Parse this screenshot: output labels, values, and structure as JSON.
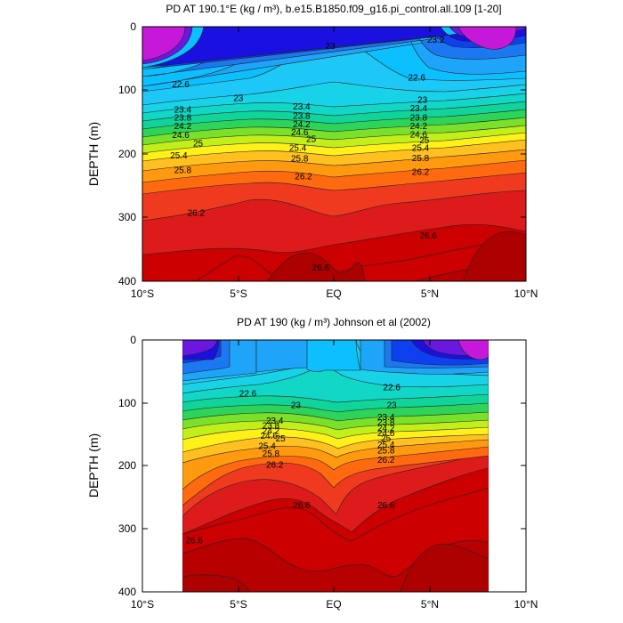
{
  "chart_data": [
    {
      "type": "contour",
      "title": "PD AT 190.1°E (kg / m³), b.e15.B1850.f09_g16.pi_control.all.109 [1-20]",
      "ylabel": "DEPTH (m)",
      "xlim": [
        -10,
        10
      ],
      "ylim": [
        400,
        0
      ],
      "x_tick_labels": [
        "10°S",
        "5°S",
        "EQ",
        "5°N",
        "10°N"
      ],
      "y_tick_labels": [
        "0",
        "100",
        "200",
        "300",
        "400"
      ],
      "grid": false,
      "legend": "none",
      "contour_levels": [
        21.8,
        22.2,
        22.6,
        23.0,
        23.2,
        23.4,
        23.6,
        23.8,
        24.0,
        24.2,
        24.4,
        24.6,
        24.8,
        25.0,
        25.2,
        25.4,
        25.6,
        25.8,
        26.2,
        26.6
      ],
      "contour_labels": [
        {
          "text": "23.2",
          "x": 5.3,
          "y": 20
        },
        {
          "text": "22.6",
          "x": -8.0,
          "y": 90
        },
        {
          "text": "23",
          "x": -0.2,
          "y": 30
        },
        {
          "text": "22.6",
          "x": 4.3,
          "y": 80
        },
        {
          "text": "23",
          "x": -5.0,
          "y": 112
        },
        {
          "text": "23",
          "x": 4.6,
          "y": 115
        },
        {
          "text": "23.4",
          "x": -7.9,
          "y": 130
        },
        {
          "text": "23.4",
          "x": -1.7,
          "y": 125
        },
        {
          "text": "23.4",
          "x": 4.4,
          "y": 128
        },
        {
          "text": "23.8",
          "x": -7.9,
          "y": 143
        },
        {
          "text": "23.8",
          "x": -1.7,
          "y": 140
        },
        {
          "text": "23.8",
          "x": 4.4,
          "y": 143
        },
        {
          "text": "24.2",
          "x": -7.9,
          "y": 156
        },
        {
          "text": "24.2",
          "x": -1.7,
          "y": 153
        },
        {
          "text": "24.2",
          "x": 4.4,
          "y": 156
        },
        {
          "text": "24.6",
          "x": -8.0,
          "y": 170
        },
        {
          "text": "24.6",
          "x": -1.8,
          "y": 166
        },
        {
          "text": "24.6",
          "x": 4.4,
          "y": 169
        },
        {
          "text": "25",
          "x": -7.1,
          "y": 183
        },
        {
          "text": "25",
          "x": -1.2,
          "y": 176
        },
        {
          "text": "25",
          "x": 4.7,
          "y": 178
        },
        {
          "text": "25.4",
          "x": -8.1,
          "y": 202
        },
        {
          "text": "25.4",
          "x": -1.9,
          "y": 190
        },
        {
          "text": "25.4",
          "x": 4.5,
          "y": 190
        },
        {
          "text": "25.8",
          "x": -7.9,
          "y": 225
        },
        {
          "text": "25.8",
          "x": -1.8,
          "y": 207
        },
        {
          "text": "25.8",
          "x": 4.5,
          "y": 206
        },
        {
          "text": "26.2",
          "x": -1.6,
          "y": 235
        },
        {
          "text": "26.2",
          "x": 4.5,
          "y": 228
        },
        {
          "text": "26.2",
          "x": -7.2,
          "y": 292
        },
        {
          "text": "26.6",
          "x": 4.9,
          "y": 328
        },
        {
          "text": "26.6",
          "x": -0.7,
          "y": 378
        }
      ]
    },
    {
      "type": "contour",
      "title": "PD AT 190 (kg / m³) Johnson et al (2002)",
      "ylabel": "DEPTH (m)",
      "xlim": [
        -10,
        10
      ],
      "ylim": [
        400,
        0
      ],
      "data_x_range": [
        -8,
        8
      ],
      "x_tick_labels": [
        "10°S",
        "5°S",
        "EQ",
        "5°N",
        "10°N"
      ],
      "y_tick_labels": [
        "0",
        "100",
        "200",
        "300",
        "400"
      ],
      "grid": false,
      "legend": "none",
      "contour_levels": [
        21.8,
        22.2,
        22.6,
        23.0,
        23.2,
        23.4,
        23.6,
        23.8,
        24.0,
        24.2,
        24.4,
        24.6,
        24.8,
        25.0,
        25.2,
        25.4,
        25.6,
        25.8,
        26.2,
        26.6
      ],
      "contour_labels": [
        {
          "text": "22.6",
          "x": -4.5,
          "y": 85
        },
        {
          "text": "22.6",
          "x": 3.0,
          "y": 75
        },
        {
          "text": "23",
          "x": -2.0,
          "y": 103
        },
        {
          "text": "23",
          "x": 3.0,
          "y": 103
        },
        {
          "text": "23.4",
          "x": -3.1,
          "y": 128
        },
        {
          "text": "23.4",
          "x": 2.7,
          "y": 122
        },
        {
          "text": "23.8",
          "x": -3.3,
          "y": 136
        },
        {
          "text": "23.8",
          "x": 2.7,
          "y": 131
        },
        {
          "text": "24.2",
          "x": -3.3,
          "y": 144
        },
        {
          "text": "24.2",
          "x": 2.7,
          "y": 140
        },
        {
          "text": "24.6",
          "x": -3.4,
          "y": 152
        },
        {
          "text": "24.6",
          "x": 2.7,
          "y": 148
        },
        {
          "text": "25",
          "x": -2.8,
          "y": 156
        },
        {
          "text": "25",
          "x": 2.7,
          "y": 156
        },
        {
          "text": "25.4",
          "x": -3.5,
          "y": 168
        },
        {
          "text": "25.4",
          "x": 2.7,
          "y": 166
        },
        {
          "text": "25.8",
          "x": -3.3,
          "y": 180
        },
        {
          "text": "25.8",
          "x": 2.7,
          "y": 175
        },
        {
          "text": "26.2",
          "x": -3.1,
          "y": 198
        },
        {
          "text": "26.2",
          "x": 2.7,
          "y": 190
        },
        {
          "text": "26.6",
          "x": -1.7,
          "y": 262
        },
        {
          "text": "26.6",
          "x": 2.7,
          "y": 262
        },
        {
          "text": "26.6",
          "x": -7.3,
          "y": 318
        }
      ]
    }
  ]
}
